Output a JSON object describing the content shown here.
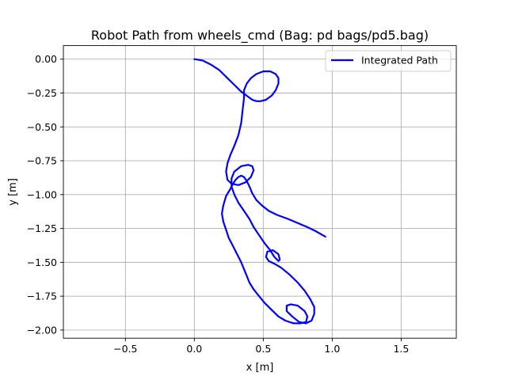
{
  "chart_data": {
    "type": "line",
    "title": "Robot Path from wheels_cmd (Bag: pd bags/pd5.bag)",
    "xlabel": "x [m]",
    "ylabel": "y [m]",
    "xlim": [
      -0.95,
      1.9
    ],
    "ylim": [
      -2.06,
      0.1
    ],
    "xticks": [
      -0.5,
      0.0,
      0.5,
      1.0,
      1.5
    ],
    "xtick_labels": [
      "−0.5",
      "0.0",
      "0.5",
      "1.0",
      "1.5"
    ],
    "yticks": [
      0.0,
      -0.25,
      -0.5,
      -0.75,
      -1.0,
      -1.25,
      -1.5,
      -1.75,
      -2.0
    ],
    "ytick_labels": [
      "0.00",
      "−0.25",
      "−0.50",
      "−0.75",
      "−1.00",
      "−1.25",
      "−1.50",
      "−1.75",
      "−2.00"
    ],
    "grid": true,
    "legend_position": "top-right",
    "series": [
      {
        "name": "Integrated Path",
        "color": "#0000ff",
        "x": [
          0.0,
          0.06,
          0.12,
          0.18,
          0.24,
          0.3,
          0.34,
          0.38,
          0.42,
          0.45,
          0.48,
          0.52,
          0.56,
          0.59,
          0.61,
          0.61,
          0.59,
          0.55,
          0.5,
          0.45,
          0.41,
          0.38,
          0.36,
          0.36,
          0.35,
          0.34,
          0.32,
          0.29,
          0.26,
          0.24,
          0.23,
          0.24,
          0.27,
          0.32,
          0.37,
          0.41,
          0.43,
          0.42,
          0.39,
          0.34,
          0.29,
          0.27,
          0.27,
          0.29,
          0.32,
          0.36,
          0.4,
          0.43,
          0.47,
          0.51,
          0.55,
          0.58,
          0.61,
          0.62,
          0.61,
          0.57,
          0.53,
          0.52,
          0.54,
          0.58,
          0.63,
          0.69,
          0.75,
          0.8,
          0.84,
          0.87,
          0.87,
          0.85,
          0.81,
          0.76,
          0.71,
          0.67,
          0.67,
          0.7,
          0.75,
          0.8,
          0.82,
          0.81,
          0.77,
          0.72,
          0.66,
          0.61,
          0.56,
          0.51,
          0.47,
          0.43,
          0.4,
          0.38,
          0.36,
          0.34,
          0.31,
          0.28,
          0.25,
          0.23,
          0.21,
          0.2,
          0.21,
          0.23,
          0.26,
          0.28,
          0.3,
          0.32,
          0.34,
          0.36,
          0.38,
          0.4,
          0.42,
          0.45,
          0.49,
          0.54,
          0.6,
          0.68,
          0.75,
          0.82,
          0.88,
          0.95
        ],
        "y": [
          0.0,
          -0.01,
          -0.04,
          -0.08,
          -0.14,
          -0.2,
          -0.24,
          -0.27,
          -0.3,
          -0.31,
          -0.31,
          -0.3,
          -0.27,
          -0.23,
          -0.18,
          -0.14,
          -0.11,
          -0.09,
          -0.09,
          -0.11,
          -0.14,
          -0.18,
          -0.23,
          -0.29,
          -0.38,
          -0.47,
          -0.56,
          -0.64,
          -0.71,
          -0.77,
          -0.83,
          -0.89,
          -0.92,
          -0.93,
          -0.91,
          -0.87,
          -0.82,
          -0.79,
          -0.78,
          -0.79,
          -0.83,
          -0.88,
          -0.94,
          -1.0,
          -1.06,
          -1.12,
          -1.18,
          -1.24,
          -1.3,
          -1.36,
          -1.41,
          -1.46,
          -1.49,
          -1.48,
          -1.44,
          -1.41,
          -1.42,
          -1.46,
          -1.49,
          -1.51,
          -1.54,
          -1.59,
          -1.65,
          -1.71,
          -1.77,
          -1.83,
          -1.88,
          -1.93,
          -1.95,
          -1.94,
          -1.9,
          -1.86,
          -1.82,
          -1.81,
          -1.82,
          -1.86,
          -1.9,
          -1.94,
          -1.95,
          -1.95,
          -1.93,
          -1.9,
          -1.85,
          -1.8,
          -1.75,
          -1.7,
          -1.65,
          -1.6,
          -1.55,
          -1.5,
          -1.44,
          -1.38,
          -1.32,
          -1.26,
          -1.2,
          -1.14,
          -1.08,
          -1.01,
          -0.96,
          -0.92,
          -0.89,
          -0.87,
          -0.86,
          -0.87,
          -0.9,
          -0.94,
          -0.99,
          -1.04,
          -1.08,
          -1.12,
          -1.15,
          -1.18,
          -1.21,
          -1.24,
          -1.27,
          -1.31
        ]
      }
    ]
  }
}
